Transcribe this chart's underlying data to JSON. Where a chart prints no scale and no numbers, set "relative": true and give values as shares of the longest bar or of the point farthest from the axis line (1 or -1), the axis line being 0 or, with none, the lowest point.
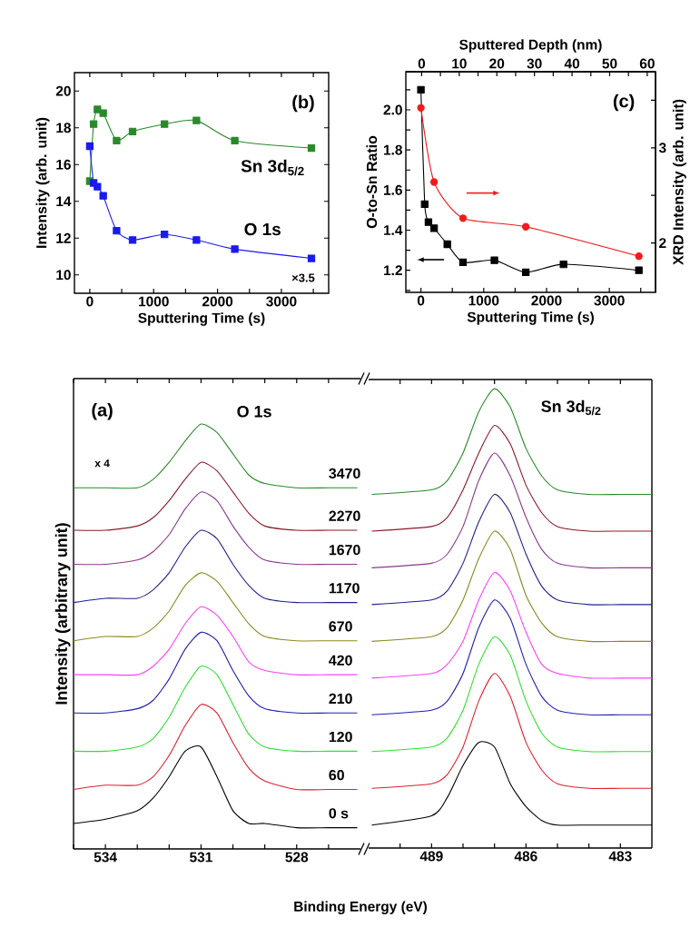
{
  "chart_data": [
    {
      "type": "line",
      "xlabel": "Sputtering Time (s)",
      "ylabel": "Intensity (arb. unit)",
      "xlim": [
        -240,
        3740
      ],
      "ylim": [
        9,
        21
      ],
      "xticks": [
        0,
        {
          "value": 500,
          "label": null
        },
        1000,
        {
          "value": 1500,
          "label": null
        },
        2000,
        {
          "value": 2500,
          "label": null
        },
        3000,
        {
          "value": 3500,
          "label": null
        }
      ],
      "yticks": [
        10,
        12,
        14,
        16,
        18,
        20
      ],
      "marker": "square",
      "x": [
        0,
        60,
        120,
        210,
        420,
        670,
        1170,
        1670,
        2270,
        3470
      ],
      "series": [
        {
          "name": "Sn 3d$_{5/2}$",
          "color": "#2a8a2a",
          "values": [
            15.1,
            18.2,
            19.0,
            18.8,
            17.3,
            17.8,
            18.2,
            18.4,
            17.3,
            16.9
          ]
        },
        {
          "name": "O 1s",
          "color": "#1a1aee",
          "values": [
            17.0,
            15.0,
            14.8,
            14.3,
            12.4,
            11.9,
            12.2,
            11.9,
            11.4,
            10.9
          ]
        }
      ],
      "annotations": [
        "(b)",
        "×3.5"
      ]
    },
    {
      "type": "line",
      "xlabel": "Sputtering Time (s)",
      "ylabel": "O-to-Sn  Ratio",
      "y2label": "XRD Intensity (arb. unit)",
      "x2label": "Sputtered Depth (nm)",
      "xlim": [
        -240,
        3735
      ],
      "ylim": [
        1.09,
        2.19
      ],
      "y2lim": [
        1.48,
        3.8
      ],
      "x2lim": [
        -4.2,
        62.2
      ],
      "xticks": [
        0,
        {
          "value": 500,
          "label": null
        },
        1000,
        {
          "value": 1500,
          "label": null
        },
        2000,
        {
          "value": 2500,
          "label": null
        },
        3000,
        {
          "value": 3500,
          "label": null
        }
      ],
      "yticks": [
        {
          "value": 1.1,
          "label": null
        },
        1.2,
        {
          "value": 1.3,
          "label": null
        },
        1.4,
        {
          "value": 1.5,
          "label": null
        },
        1.6,
        {
          "value": 1.7,
          "label": null
        },
        1.8,
        {
          "value": 1.9,
          "label": null
        },
        {
          "value": 2,
          "label": "2.0"
        },
        {
          "value": 2.1,
          "label": null
        }
      ],
      "y2ticks": [
        2,
        {
          "value": 2.5,
          "label": null
        },
        3,
        {
          "value": 3.5,
          "label": null
        }
      ],
      "x2ticks": [
        0,
        {
          "value": 5,
          "label": null
        },
        10,
        {
          "value": 15,
          "label": null
        },
        20,
        {
          "value": 25,
          "label": null
        },
        30,
        {
          "value": 35,
          "label": null
        },
        40,
        {
          "value": 45,
          "label": null
        },
        50,
        {
          "value": 55,
          "label": null
        },
        60
      ],
      "series": [
        {
          "color": "#000000",
          "marker": "square",
          "x": [
            0,
            60,
            120,
            210,
            420,
            670,
            1170,
            1670,
            2270,
            3470
          ],
          "values": [
            2.1,
            1.53,
            1.44,
            1.41,
            1.33,
            1.24,
            1.25,
            1.19,
            1.23,
            1.2
          ]
        },
        {
          "color": "#ee1c1c",
          "marker": "circle",
          "axis": "y2",
          "x": [
            0,
            210,
            670,
            1670,
            3470
          ],
          "values": [
            3.42,
            2.64,
            2.26,
            2.17,
            1.86
          ]
        }
      ],
      "annotations": [
        "(c)"
      ]
    },
    {
      "type": "line",
      "relative": true,
      "xlabel": "Binding Energy (eV)",
      "ylabel": "Intensity (arbitrary unit)",
      "xlim": [
        535,
        526
      ],
      "xticks": [
        {
          "value": 535,
          "label": null
        },
        534,
        {
          "value": 533,
          "label": null
        },
        {
          "value": 532,
          "label": null
        },
        531,
        {
          "value": 530,
          "label": null
        },
        {
          "value": 529,
          "label": null
        },
        528,
        {
          "value": 527,
          "label": null
        }
      ],
      "x": [
        535,
        534,
        533,
        532.5,
        532,
        531.5,
        531,
        530.5,
        530,
        529.5,
        529,
        528,
        527,
        526.1
      ],
      "series": [
        {
          "name": "0 s",
          "color": "#000000",
          "values": [
            0.06,
            0.07,
            0.09,
            0.12,
            0.17,
            0.23,
            0.24,
            0.17,
            0.09,
            0.06,
            0.06,
            0.05,
            0.05,
            0.05
          ]
        },
        {
          "name": "60",
          "color": "#e02030",
          "values": [
            0.14,
            0.15,
            0.15,
            0.17,
            0.22,
            0.29,
            0.34,
            0.32,
            0.25,
            0.19,
            0.16,
            0.14,
            0.14,
            0.14
          ]
        },
        {
          "name": "120",
          "color": "#30e030",
          "values": [
            0.23,
            0.23,
            0.24,
            0.26,
            0.31,
            0.38,
            0.43,
            0.41,
            0.34,
            0.27,
            0.24,
            0.23,
            0.23,
            0.23
          ]
        },
        {
          "name": "210",
          "color": "#2020b0",
          "values": [
            0.32,
            0.32,
            0.33,
            0.35,
            0.4,
            0.47,
            0.51,
            0.49,
            0.42,
            0.36,
            0.33,
            0.32,
            0.32,
            0.32
          ]
        },
        {
          "name": "420",
          "color": "#ff40ff",
          "values": [
            0.41,
            0.41,
            0.41,
            0.43,
            0.47,
            0.53,
            0.57,
            0.55,
            0.5,
            0.44,
            0.42,
            0.41,
            0.41,
            0.41
          ]
        },
        {
          "name": "670",
          "color": "#8a8a20",
          "values": [
            0.49,
            0.5,
            0.5,
            0.52,
            0.56,
            0.62,
            0.65,
            0.63,
            0.58,
            0.53,
            0.5,
            0.49,
            0.49,
            0.49
          ]
        },
        {
          "name": "1170",
          "color": "#202090",
          "values": [
            0.58,
            0.59,
            0.59,
            0.61,
            0.65,
            0.71,
            0.75,
            0.73,
            0.67,
            0.62,
            0.59,
            0.58,
            0.58,
            0.58
          ]
        },
        {
          "name": "1670",
          "color": "#8a3a8a",
          "values": [
            0.67,
            0.67,
            0.68,
            0.7,
            0.74,
            0.8,
            0.84,
            0.82,
            0.76,
            0.71,
            0.68,
            0.67,
            0.67,
            0.67
          ]
        },
        {
          "name": "2270",
          "color": "#8a1a2a",
          "values": [
            0.75,
            0.75,
            0.76,
            0.78,
            0.82,
            0.87,
            0.91,
            0.89,
            0.84,
            0.79,
            0.76,
            0.75,
            0.75,
            0.75
          ]
        },
        {
          "name": "3470",
          "color": "#2a8a2a",
          "values": [
            0.85,
            0.85,
            0.85,
            0.87,
            0.91,
            0.96,
            1,
            0.98,
            0.93,
            0.88,
            0.86,
            0.85,
            0.85,
            0.85
          ]
        }
      ],
      "annotations": [
        "(a)",
        "O 1s",
        "x 4"
      ]
    },
    {
      "type": "line",
      "relative": true,
      "xlim": [
        491,
        482
      ],
      "xticks": [
        {
          "value": 490,
          "label": null
        },
        489,
        {
          "value": 488,
          "label": null
        },
        {
          "value": 487,
          "label": null
        },
        486,
        {
          "value": 485,
          "label": null
        },
        {
          "value": 484,
          "label": null
        },
        483
      ],
      "x": [
        490.9,
        489,
        488.5,
        488,
        487.5,
        487,
        486.5,
        486,
        485.5,
        485,
        484,
        483,
        482
      ],
      "series": [
        {
          "color": "#000000",
          "values": [
            0.05,
            0.07,
            0.11,
            0.18,
            0.23,
            0.22,
            0.14,
            0.09,
            0.06,
            0.05,
            0.05,
            0.05,
            0.05
          ]
        },
        {
          "color": "#e02030",
          "values": [
            0.13,
            0.14,
            0.16,
            0.22,
            0.32,
            0.38,
            0.33,
            0.23,
            0.17,
            0.14,
            0.13,
            0.13,
            0.13
          ]
        },
        {
          "color": "#30e030",
          "values": [
            0.21,
            0.22,
            0.24,
            0.3,
            0.4,
            0.46,
            0.42,
            0.32,
            0.25,
            0.22,
            0.21,
            0.21,
            0.21
          ]
        },
        {
          "color": "#2020b0",
          "values": [
            0.29,
            0.3,
            0.32,
            0.38,
            0.48,
            0.54,
            0.5,
            0.4,
            0.33,
            0.3,
            0.29,
            0.29,
            0.29
          ]
        },
        {
          "color": "#ff40ff",
          "values": [
            0.37,
            0.38,
            0.4,
            0.45,
            0.54,
            0.6,
            0.56,
            0.47,
            0.4,
            0.38,
            0.37,
            0.37,
            0.37
          ]
        },
        {
          "color": "#8a8a20",
          "values": [
            0.45,
            0.46,
            0.48,
            0.54,
            0.63,
            0.69,
            0.65,
            0.55,
            0.49,
            0.46,
            0.45,
            0.45,
            0.45
          ]
        },
        {
          "color": "#202090",
          "values": [
            0.53,
            0.54,
            0.56,
            0.62,
            0.71,
            0.77,
            0.73,
            0.64,
            0.57,
            0.54,
            0.53,
            0.53,
            0.53
          ]
        },
        {
          "color": "#8a3a8a",
          "values": [
            0.61,
            0.62,
            0.64,
            0.7,
            0.8,
            0.86,
            0.81,
            0.72,
            0.65,
            0.62,
            0.61,
            0.61,
            0.61
          ]
        },
        {
          "color": "#8a1a2a",
          "values": [
            0.69,
            0.7,
            0.72,
            0.78,
            0.86,
            0.92,
            0.88,
            0.79,
            0.73,
            0.7,
            0.69,
            0.69,
            0.69
          ]
        },
        {
          "color": "#2a8a2a",
          "values": [
            0.77,
            0.78,
            0.8,
            0.86,
            0.95,
            1,
            0.96,
            0.87,
            0.81,
            0.78,
            0.77,
            0.77,
            0.77
          ]
        }
      ],
      "annotations": [
        "Sn 3d$_{5/2}$"
      ]
    }
  ]
}
